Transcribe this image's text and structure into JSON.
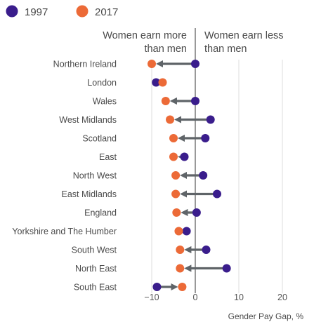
{
  "chart_data": {
    "type": "dumbbell",
    "legend": [
      {
        "name": "1997",
        "color": "#3a1d8c"
      },
      {
        "name": "2017",
        "color": "#ec6a37"
      }
    ],
    "annotations": {
      "left": [
        "Women earn more",
        "than men"
      ],
      "right": [
        "Women earn less",
        "than men"
      ]
    },
    "xlabel": "Gender Pay Gap, %",
    "xlim": [
      -15,
      24
    ],
    "xticks": [
      -10,
      0,
      10,
      20
    ],
    "grid": true,
    "categories": [
      "Northern Ireland",
      "London",
      "Wales",
      "West Midlands",
      "Scotland",
      "East",
      "North West",
      "East Midlands",
      "England",
      "Yorkshire and The Humber",
      "South West",
      "North East",
      "South East"
    ],
    "series": [
      {
        "name": "1997",
        "values": [
          0.0,
          -9.0,
          0.0,
          3.5,
          2.3,
          -2.5,
          1.8,
          5.0,
          0.3,
          -2.0,
          2.5,
          7.2,
          -8.8
        ]
      },
      {
        "name": "2017",
        "values": [
          -10.0,
          -7.5,
          -6.8,
          -5.8,
          -5.0,
          -5.0,
          -4.5,
          -4.5,
          -4.3,
          -3.8,
          -3.5,
          -3.5,
          -3.0
        ]
      }
    ],
    "arrow_color": "#5f6468",
    "zero_line_color": "#555555",
    "grid_color": "#dddddd"
  }
}
